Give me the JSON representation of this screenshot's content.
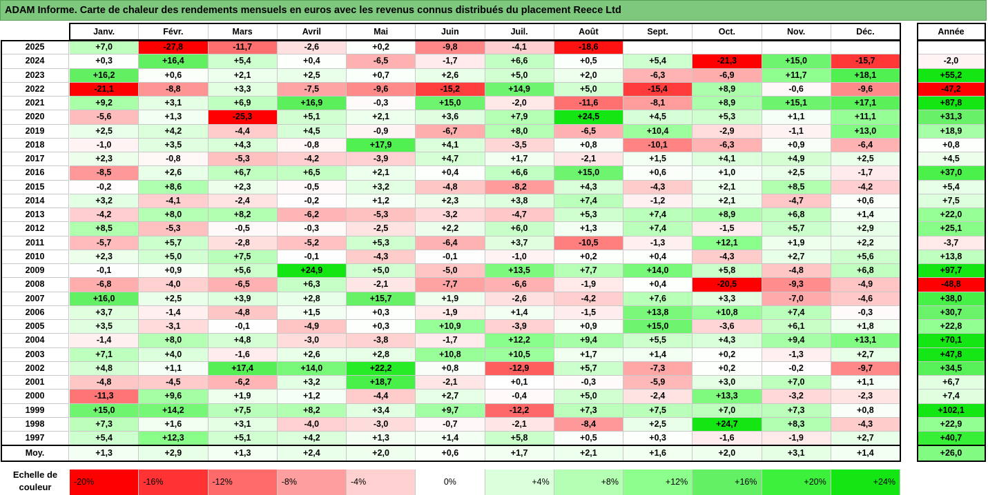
{
  "title": "ADAM Informe. Carte de chaleur des rendements mensuels en euros avec les revenus connus distribués du placement Reece Ltd",
  "months": [
    "Janv.",
    "Févr.",
    "Mars",
    "Avril",
    "Mai",
    "Juin",
    "Juil.",
    "Août",
    "Sept.",
    "Oct.",
    "Nov.",
    "Déc."
  ],
  "year_header": "Année",
  "average_label": "Moy.",
  "legend_label": "Echelle de couleur",
  "chart_data": {
    "type": "heatmap",
    "title": "ADAM Informe. Carte de chaleur des rendements mensuels en euros avec les revenus connus distribués du placement Reece Ltd",
    "columns": [
      "Janv.",
      "Févr.",
      "Mars",
      "Avril",
      "Mai",
      "Juin",
      "Juil.",
      "Août",
      "Sept.",
      "Oct.",
      "Nov.",
      "Déc."
    ],
    "rows": [
      {
        "year": "2025",
        "values": [
          "+7,0",
          "-27,8",
          "-11,7",
          "-2,6",
          "+0,2",
          "-9,8",
          "-4,1",
          "-18,6",
          "",
          "",
          "",
          ""
        ],
        "annual": ""
      },
      {
        "year": "2024",
        "values": [
          "+0,3",
          "+16,4",
          "+5,4",
          "+0,4",
          "-6,5",
          "-1,7",
          "+6,6",
          "+0,5",
          "+5,4",
          "-21,3",
          "+15,0",
          "-15,7"
        ],
        "annual": "-2,0"
      },
      {
        "year": "2023",
        "values": [
          "+16,2",
          "+0,6",
          "+2,1",
          "+2,5",
          "+0,7",
          "+2,6",
          "+5,0",
          "+2,0",
          "-6,3",
          "-6,9",
          "+11,7",
          "+18,1"
        ],
        "annual": "+55,2"
      },
      {
        "year": "2022",
        "values": [
          "-21,1",
          "-8,8",
          "+3,3",
          "-7,5",
          "-9,6",
          "-15,2",
          "+14,9",
          "+5,0",
          "-15,4",
          "+8,9",
          "-0,6",
          "-9,6"
        ],
        "annual": "-47,2"
      },
      {
        "year": "2021",
        "values": [
          "+9,2",
          "+3,1",
          "+6,9",
          "+16,9",
          "-0,3",
          "+15,0",
          "-2,0",
          "-11,6",
          "-8,1",
          "+8,9",
          "+15,1",
          "+17,1"
        ],
        "annual": "+87,8"
      },
      {
        "year": "2020",
        "values": [
          "-5,6",
          "+1,3",
          "-25,3",
          "+5,1",
          "+2,1",
          "+3,6",
          "+7,9",
          "+24,5",
          "+4,5",
          "+5,3",
          "+1,1",
          "+11,1"
        ],
        "annual": "+31,3"
      },
      {
        "year": "2019",
        "values": [
          "+2,5",
          "+4,2",
          "-4,4",
          "+4,5",
          "-0,9",
          "-6,7",
          "+8,0",
          "-6,5",
          "+10,4",
          "-2,9",
          "-1,1",
          "+13,0"
        ],
        "annual": "+18,9"
      },
      {
        "year": "2018",
        "values": [
          "-1,0",
          "+3,5",
          "+4,3",
          "-0,8",
          "+17,9",
          "+4,1",
          "-3,5",
          "+0,8",
          "-10,1",
          "-6,3",
          "+0,9",
          "-6,4"
        ],
        "annual": "+0,8"
      },
      {
        "year": "2017",
        "values": [
          "+2,3",
          "-0,8",
          "-5,3",
          "-4,2",
          "-3,9",
          "+4,7",
          "+1,7",
          "-2,1",
          "+1,5",
          "+4,1",
          "+4,9",
          "+2,5"
        ],
        "annual": "+4,5"
      },
      {
        "year": "2016",
        "values": [
          "-8,5",
          "+2,6",
          "+6,7",
          "+6,5",
          "+2,1",
          "+0,4",
          "+6,6",
          "+15,0",
          "+0,6",
          "+1,0",
          "+2,5",
          "-1,7"
        ],
        "annual": "+37,0"
      },
      {
        "year": "2015",
        "values": [
          "-0,2",
          "+8,6",
          "+2,3",
          "-0,5",
          "+3,2",
          "-4,8",
          "-8,2",
          "+4,3",
          "-4,3",
          "+2,1",
          "+8,5",
          "-4,2"
        ],
        "annual": "+5,4"
      },
      {
        "year": "2014",
        "values": [
          "+3,2",
          "-4,1",
          "-2,4",
          "-0,2",
          "+1,2",
          "+2,3",
          "+3,8",
          "+7,4",
          "-1,2",
          "+2,1",
          "-4,7",
          "+0,6"
        ],
        "annual": "+7,5"
      },
      {
        "year": "2013",
        "values": [
          "-4,2",
          "+8,0",
          "+8,2",
          "-6,2",
          "-5,3",
          "-3,2",
          "-4,7",
          "+5,3",
          "+7,4",
          "+8,9",
          "+6,8",
          "+1,4"
        ],
        "annual": "+22,0"
      },
      {
        "year": "2012",
        "values": [
          "+8,5",
          "-5,3",
          "-0,5",
          "-0,3",
          "-2,5",
          "+2,2",
          "+6,0",
          "+1,3",
          "+7,4",
          "-1,5",
          "+5,7",
          "+2,9"
        ],
        "annual": "+25,1"
      },
      {
        "year": "2011",
        "values": [
          "-5,7",
          "+5,7",
          "-2,8",
          "-5,2",
          "+5,3",
          "-6,4",
          "+3,7",
          "-10,5",
          "-1,3",
          "+12,1",
          "+1,9",
          "+2,2"
        ],
        "annual": "-3,7"
      },
      {
        "year": "2010",
        "values": [
          "+2,3",
          "+5,0",
          "+7,5",
          "-0,1",
          "-4,3",
          "-0,1",
          "-1,0",
          "+0,2",
          "+0,4",
          "-4,3",
          "+2,7",
          "+5,6"
        ],
        "annual": "+13,8"
      },
      {
        "year": "2009",
        "values": [
          "-0,1",
          "+0,9",
          "+5,6",
          "+24,9",
          "+5,0",
          "-5,0",
          "+13,5",
          "+7,7",
          "+14,0",
          "+5,8",
          "-4,8",
          "+6,8"
        ],
        "annual": "+97,7"
      },
      {
        "year": "2008",
        "values": [
          "-6,8",
          "-4,0",
          "-6,5",
          "+6,3",
          "-2,1",
          "-7,7",
          "-6,6",
          "-1,9",
          "+0,4",
          "-20,5",
          "-9,3",
          "-4,9"
        ],
        "annual": "-48,8"
      },
      {
        "year": "2007",
        "values": [
          "+16,0",
          "+2,5",
          "+3,9",
          "+2,8",
          "+15,7",
          "+1,9",
          "-2,6",
          "-4,2",
          "+7,6",
          "+3,3",
          "-7,0",
          "-4,6"
        ],
        "annual": "+38,0"
      },
      {
        "year": "2006",
        "values": [
          "+3,7",
          "-1,4",
          "-4,8",
          "+1,5",
          "+0,3",
          "-1,9",
          "+1,4",
          "-1,5",
          "+13,8",
          "+10,8",
          "+7,4",
          "-0,3"
        ],
        "annual": "+30,7"
      },
      {
        "year": "2005",
        "values": [
          "+3,5",
          "-3,1",
          "-0,1",
          "-4,9",
          "+0,3",
          "+10,9",
          "-3,9",
          "+0,9",
          "+15,0",
          "-3,6",
          "+6,1",
          "+1,8"
        ],
        "annual": "+22,8"
      },
      {
        "year": "2004",
        "values": [
          "-1,4",
          "+8,0",
          "+4,8",
          "-3,0",
          "-3,8",
          "-1,7",
          "+12,2",
          "+9,4",
          "+5,5",
          "+4,3",
          "+9,4",
          "+13,1"
        ],
        "annual": "+70,1"
      },
      {
        "year": "2003",
        "values": [
          "+7,1",
          "+4,0",
          "-1,6",
          "+2,6",
          "+2,8",
          "+10,8",
          "+10,5",
          "+1,7",
          "+1,4",
          "+0,2",
          "-1,3",
          "+2,7"
        ],
        "annual": "+47,8"
      },
      {
        "year": "2002",
        "values": [
          "+4,8",
          "+1,1",
          "+17,4",
          "+14,0",
          "+22,2",
          "+0,8",
          "-12,9",
          "+5,7",
          "-7,3",
          "+0,2",
          "-0,2",
          "-9,7"
        ],
        "annual": "+34,5"
      },
      {
        "year": "2001",
        "values": [
          "-4,8",
          "-4,5",
          "-6,2",
          "+3,2",
          "+18,7",
          "-2,1",
          "+0,1",
          "-0,3",
          "-5,9",
          "+3,0",
          "+7,0",
          "+1,1"
        ],
        "annual": "+6,7"
      },
      {
        "year": "2000",
        "values": [
          "-11,3",
          "+9,6",
          "+1,9",
          "+1,2",
          "-4,4",
          "+2,7",
          "-0,4",
          "+5,0",
          "-2,4",
          "+13,3",
          "-3,2",
          "-2,3"
        ],
        "annual": "+7,4"
      },
      {
        "year": "1999",
        "values": [
          "+15,0",
          "+14,2",
          "+7,5",
          "+8,2",
          "+3,4",
          "+9,7",
          "-12,2",
          "+7,3",
          "+7,5",
          "+7,0",
          "+7,3",
          "+0,8"
        ],
        "annual": "+102,1"
      },
      {
        "year": "1998",
        "values": [
          "+7,3",
          "+1,6",
          "+3,1",
          "-4,0",
          "-3,0",
          "-0,7",
          "-2,1",
          "-8,4",
          "+2,5",
          "+24,7",
          "+8,3",
          "-4,3"
        ],
        "annual": "+22,9"
      },
      {
        "year": "1997",
        "values": [
          "+5,4",
          "+12,3",
          "+5,1",
          "+4,2",
          "+1,3",
          "+1,4",
          "+5,8",
          "+0,5",
          "+0,3",
          "-1,6",
          "-1,9",
          "+2,7"
        ],
        "annual": "+40,7"
      }
    ],
    "averages": [
      "+1,3",
      "+2,9",
      "+1,3",
      "+2,4",
      "+2,0",
      "+0,6",
      "+1,7",
      "+2,1",
      "+1,6",
      "+2,0",
      "+3,1",
      "+1,4"
    ],
    "average_annual": "+26,0",
    "color_scale": [
      {
        "label": "-20%",
        "value": -20,
        "color": "#ff0000"
      },
      {
        "label": "-16%",
        "value": -16,
        "color": "#ff3333"
      },
      {
        "label": "-12%",
        "value": -12,
        "color": "#ff6b6b"
      },
      {
        "label": "-8%",
        "value": -8,
        "color": "#ff9e9e"
      },
      {
        "label": "-4%",
        "value": -4,
        "color": "#ffd0d0"
      },
      {
        "label": "0%",
        "value": 0,
        "color": "#ffffff"
      },
      {
        "label": "+4%",
        "value": 4,
        "color": "#dcffdc"
      },
      {
        "label": "+8%",
        "value": 8,
        "color": "#b4ffb4"
      },
      {
        "label": "+12%",
        "value": 12,
        "color": "#8cff8c"
      },
      {
        "label": "+16%",
        "value": 16,
        "color": "#64f064"
      },
      {
        "label": "+20%",
        "value": 20,
        "color": "#3cf03c"
      },
      {
        "label": "+24%",
        "value": 24,
        "color": "#14e614"
      }
    ]
  }
}
